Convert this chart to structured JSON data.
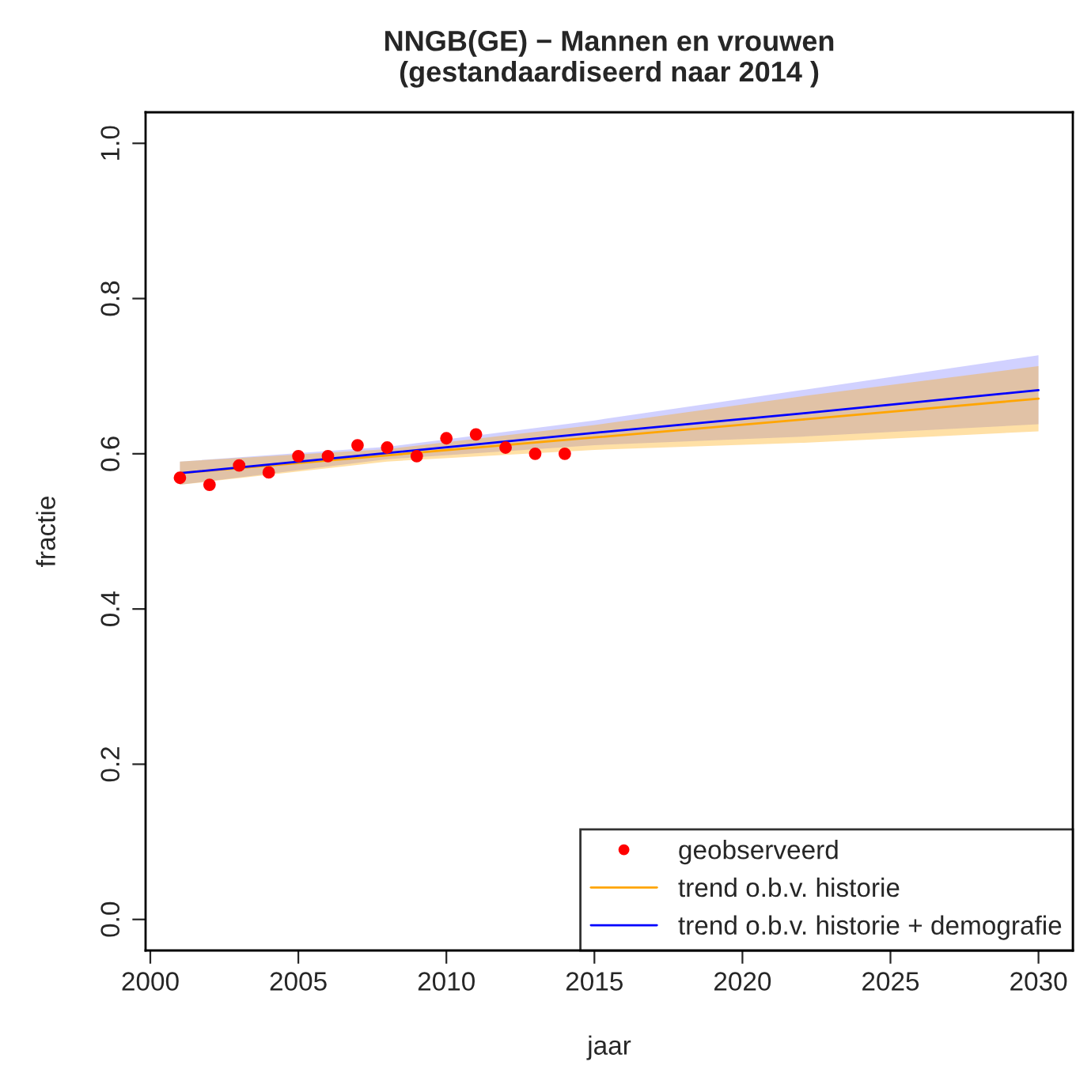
{
  "chart_data": {
    "type": "line",
    "title": "NNGB(GE) − Mannen en vrouwen\n(gestandaardiseerd naar 2014 )",
    "xlabel": "jaar",
    "ylabel": "fractie",
    "xlim": [
      1999.84,
      2031.16
    ],
    "xticks": [
      2000,
      2005,
      2010,
      2015,
      2020,
      2025,
      2030
    ],
    "ylim": [
      -0.04,
      1.04
    ],
    "yticks": [
      {
        "value": 0,
        "label": "0.0"
      },
      0.2,
      0.4,
      0.6,
      0.8,
      {
        "value": 1,
        "label": "1.0"
      }
    ],
    "grid": false,
    "legend": "bottom right",
    "series": [
      {
        "name": "geobserveerd",
        "type": "scatter",
        "marker": "circle",
        "color": "#ff0000",
        "x": [
          2001,
          2002,
          2003,
          2004,
          2005,
          2006,
          2007,
          2008,
          2009,
          2010,
          2011,
          2012,
          2013,
          2014
        ],
        "values": [
          0.569,
          0.56,
          0.585,
          0.576,
          0.597,
          0.597,
          0.611,
          0.608,
          0.597,
          0.62,
          0.625,
          0.608,
          0.6,
          0.6
        ]
      },
      {
        "name": "trend o.b.v. historie",
        "color": "#ffa500",
        "x": [
          2001,
          2008,
          2015,
          2022,
          2030
        ],
        "values": [
          0.575,
          0.598,
          0.621,
          0.644,
          0.671
        ],
        "lower": [
          0.56,
          0.59,
          0.605,
          0.614,
          0.629
        ],
        "upper": [
          0.59,
          0.606,
          0.637,
          0.674,
          0.713
        ]
      },
      {
        "name": "trend o.b.v. historie + demografie",
        "color": "#0000ff",
        "x": [
          2001,
          2008,
          2015,
          2022,
          2030
        ],
        "values": [
          0.575,
          0.601,
          0.627,
          0.652,
          0.682
        ],
        "lower": [
          0.56,
          0.593,
          0.611,
          0.622,
          0.638
        ],
        "upper": [
          0.59,
          0.609,
          0.643,
          0.682,
          0.727
        ]
      }
    ]
  }
}
